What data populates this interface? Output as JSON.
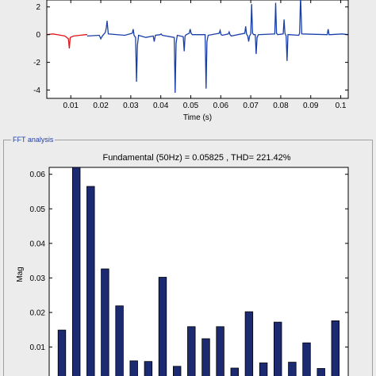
{
  "time_plot": {
    "xlabel": "Time (s)",
    "x_ticks": [
      "0.01",
      "0.02",
      "0.03",
      "0.04",
      "0.05",
      "0.06",
      "0.07",
      "0.08",
      "0.09",
      "0.1"
    ],
    "y_ticks": [
      "2",
      "0",
      "-2",
      "-4"
    ],
    "colors": {
      "before": "#e0141b",
      "after": "#1a3fa8",
      "axes": "#000000"
    }
  },
  "fft_panel": {
    "label": "FFT analysis"
  },
  "chart_data": [
    {
      "type": "line",
      "title": "",
      "xlabel": "Time (s)",
      "ylabel": "",
      "xlim": [
        0.002,
        0.1025
      ],
      "ylim": [
        -4.6,
        2.5
      ],
      "grid": false,
      "series": [
        {
          "color": "#e0141b",
          "x": [
            0.002,
            0.004,
            0.006,
            0.008,
            0.0092,
            0.0095,
            0.0098,
            0.011,
            0.013,
            0.015,
            0.0155
          ],
          "y": [
            0.0,
            0.05,
            -0.02,
            -0.1,
            -0.3,
            -1.0,
            -0.2,
            -0.1,
            -0.05,
            0.0,
            0.0
          ]
        },
        {
          "color": "#1a3fa8",
          "x": [
            0.0155,
            0.0195,
            0.02,
            0.0205,
            0.0215,
            0.0218,
            0.0221,
            0.0225,
            0.028,
            0.0305,
            0.0308,
            0.0311,
            0.0316,
            0.0319,
            0.0322,
            0.0326,
            0.035,
            0.0375,
            0.0378,
            0.0382,
            0.0398,
            0.0401,
            0.0405,
            0.0445,
            0.0448,
            0.0451,
            0.0455,
            0.0475,
            0.0478,
            0.0481,
            0.0485,
            0.0495,
            0.0498,
            0.0501,
            0.0505,
            0.0548,
            0.0551,
            0.0554,
            0.0558,
            0.0595,
            0.0598,
            0.0601,
            0.0605,
            0.0625,
            0.0628,
            0.0631,
            0.0635,
            0.068,
            0.0683,
            0.0686,
            0.069,
            0.0693,
            0.0696,
            0.07,
            0.0703,
            0.0706,
            0.071,
            0.0715,
            0.0718,
            0.0721,
            0.0725,
            0.078,
            0.0783,
            0.0786,
            0.079,
            0.0808,
            0.0811,
            0.0814,
            0.0818,
            0.0821,
            0.0824,
            0.0828,
            0.086,
            0.0863,
            0.0866,
            0.087,
            0.0955,
            0.0958,
            0.0961,
            0.0965,
            0.1005,
            0.1025
          ],
          "y": [
            -0.1,
            -0.05,
            -0.3,
            -0.1,
            0.15,
            0.45,
            1.0,
            0.05,
            -0.05,
            0.1,
            0.4,
            -0.05,
            -0.2,
            -3.4,
            -0.8,
            -0.05,
            -0.2,
            -0.1,
            -0.5,
            -0.05,
            0.0,
            0.05,
            -0.05,
            -0.2,
            -4.2,
            -0.6,
            -0.05,
            -0.15,
            -1.2,
            -0.1,
            0.0,
            0.1,
            0.4,
            0.1,
            0.0,
            0.0,
            -3.9,
            -0.5,
            -0.05,
            0.1,
            0.3,
            0.0,
            -0.05,
            0.05,
            0.2,
            0.0,
            -0.1,
            0.1,
            0.6,
            0.05,
            -0.1,
            -0.5,
            -0.1,
            0.05,
            2.2,
            0.1,
            0.0,
            0.0,
            -1.4,
            -0.2,
            0.0,
            0.05,
            2.3,
            0.1,
            0.0,
            0.05,
            1.1,
            0.1,
            -0.1,
            -1.9,
            0.0,
            0.0,
            -0.05,
            0.1,
            2.8,
            0.05,
            0.0,
            0.4,
            0.0,
            0.0,
            0.05,
            0.0
          ]
        }
      ]
    },
    {
      "type": "bar",
      "title": "Fundamental (50Hz) = 0.05825 , THD= 221.42%",
      "xlabel": "",
      "ylabel": "Mag",
      "ylim": [
        0,
        0.062
      ],
      "y_ticks": [
        "0.06",
        "0.05",
        "0.04",
        "0.03",
        "0.02",
        "0.01"
      ],
      "bar_color": "#1c2a72",
      "values": [
        0.0149,
        0.0628,
        0.0565,
        0.0326,
        0.0219,
        0.006,
        0.0058,
        0.0302,
        0.0044,
        0.0159,
        0.0124,
        0.0159,
        0.0039,
        0.0202,
        0.0054,
        0.0172,
        0.0056,
        0.0112,
        0.0038,
        0.0176
      ]
    }
  ]
}
